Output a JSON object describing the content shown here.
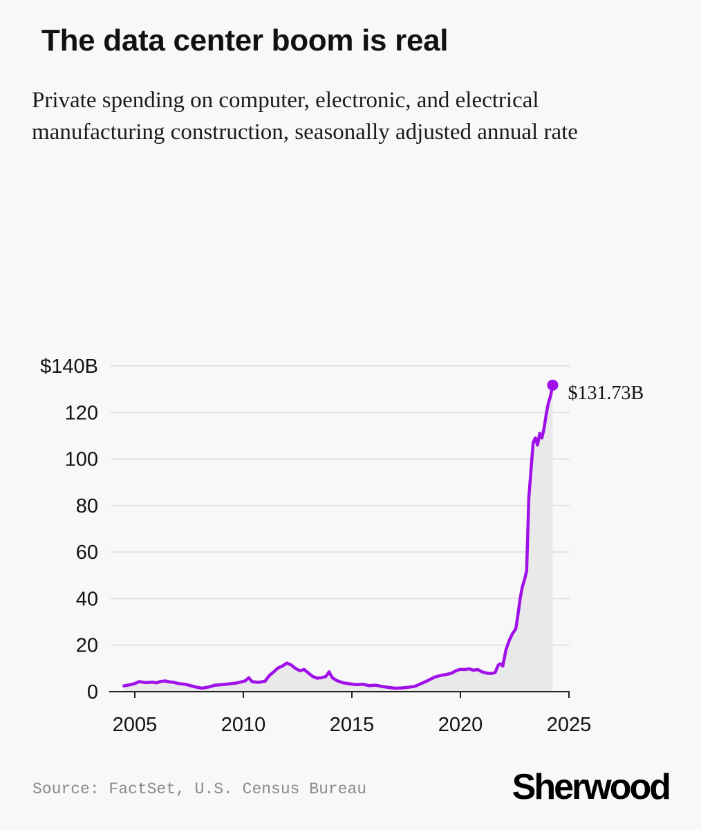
{
  "chart_data": {
    "type": "area",
    "title": "The data center boom is real",
    "subtitle": "Private spending on computer, electronic, and electrical manufacturing construction, seasonally adjusted annual rate",
    "xlabel": "",
    "ylabel": "",
    "xlim": [
      2003.8,
      2025.2
    ],
    "ylim": [
      0,
      140
    ],
    "x_ticks": [
      2005,
      2010,
      2015,
      2020,
      2025
    ],
    "x_tick_labels": [
      "2005",
      "2010",
      "2015",
      "2020",
      "2025"
    ],
    "y_ticks": [
      0,
      20,
      40,
      60,
      80,
      100,
      120,
      140
    ],
    "y_tick_labels": [
      "0",
      "20",
      "40",
      "60",
      "80",
      "100",
      "120",
      "$140B"
    ],
    "grid": true,
    "line_color": "#a010e8",
    "fill_color": "#e9e9e9",
    "end_label": "$131.73B",
    "series": [
      {
        "name": "Private spending",
        "x": [
          2004.5,
          2004.8,
          2005.0,
          2005.2,
          2005.5,
          2005.8,
          2006.0,
          2006.2,
          2006.4,
          2006.6,
          2006.8,
          2007.0,
          2007.3,
          2007.6,
          2007.9,
          2008.1,
          2008.4,
          2008.7,
          2009.0,
          2009.3,
          2009.6,
          2009.9,
          2010.1,
          2010.25,
          2010.4,
          2010.7,
          2011.0,
          2011.2,
          2011.4,
          2011.6,
          2011.8,
          2012.0,
          2012.2,
          2012.4,
          2012.6,
          2012.8,
          2013.0,
          2013.2,
          2013.4,
          2013.6,
          2013.8,
          2013.95,
          2014.1,
          2014.3,
          2014.6,
          2014.9,
          2015.2,
          2015.5,
          2015.8,
          2016.1,
          2016.4,
          2016.7,
          2017.0,
          2017.3,
          2017.6,
          2017.9,
          2018.2,
          2018.5,
          2018.8,
          2019.1,
          2019.4,
          2019.6,
          2019.8,
          2020.0,
          2020.2,
          2020.4,
          2020.6,
          2020.8,
          2021.0,
          2021.2,
          2021.4,
          2021.6,
          2021.75,
          2021.85,
          2021.95,
          2022.1,
          2022.25,
          2022.4,
          2022.55,
          2022.65,
          2022.75,
          2022.85,
          2022.95,
          2023.05,
          2023.15,
          2023.25,
          2023.35,
          2023.45,
          2023.55,
          2023.65,
          2023.75,
          2023.85,
          2023.95,
          2024.05,
          2024.15,
          2024.25
        ],
        "y": [
          2.5,
          3.0,
          3.5,
          4.3,
          3.9,
          4.1,
          3.8,
          4.4,
          4.6,
          4.2,
          4.0,
          3.5,
          3.2,
          2.5,
          1.8,
          1.5,
          2.0,
          2.8,
          3.0,
          3.3,
          3.6,
          4.2,
          4.7,
          6.0,
          4.3,
          4.0,
          4.5,
          7.0,
          8.5,
          10.2,
          11.0,
          12.3,
          11.5,
          10.0,
          9.0,
          9.5,
          8.0,
          6.5,
          5.8,
          6.0,
          6.5,
          8.5,
          6.0,
          4.8,
          3.8,
          3.4,
          3.0,
          3.2,
          2.6,
          2.8,
          2.2,
          1.8,
          1.5,
          1.6,
          1.9,
          2.3,
          3.5,
          4.8,
          6.2,
          7.0,
          7.5,
          8.0,
          9.0,
          9.6,
          9.5,
          9.8,
          9.2,
          9.5,
          8.5,
          8.0,
          7.8,
          8.2,
          11.5,
          12.0,
          11.0,
          18.0,
          22.0,
          25.0,
          27.0,
          33.0,
          40.0,
          45.0,
          48.0,
          52.0,
          83.0,
          95.0,
          107.0,
          109.0,
          106.0,
          111.0,
          109.0,
          113.0,
          119.0,
          124.0,
          127.0,
          131.73
        ]
      }
    ]
  },
  "source": "Source: FactSet, U.S. Census Bureau",
  "logo": "Sherwood"
}
